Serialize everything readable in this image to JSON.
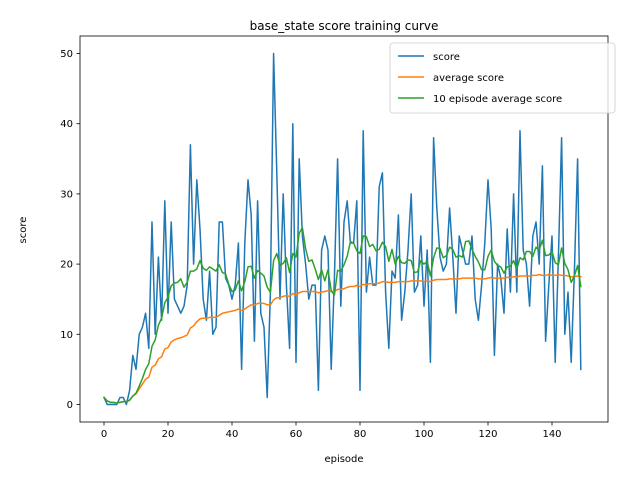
{
  "chart_data": {
    "type": "line",
    "title": "base_state score training curve",
    "xlabel": "episode",
    "ylabel": "score",
    "xlim": [
      -7.5,
      157.5
    ],
    "ylim": [
      -2.5,
      52.5
    ],
    "xticks": [
      0,
      20,
      40,
      60,
      80,
      100,
      120,
      140
    ],
    "yticks": [
      0,
      10,
      20,
      30,
      40,
      50
    ],
    "grid": false,
    "legend_position": "top-right",
    "series": [
      {
        "name": "score",
        "color": "#1f77b4",
        "values": [
          1,
          0,
          0,
          0,
          0,
          1,
          1,
          0,
          2,
          7,
          5,
          10,
          11,
          13,
          8,
          26,
          10,
          21,
          12,
          29,
          13,
          26,
          15,
          14,
          13,
          14,
          17,
          37,
          20,
          32,
          25,
          15,
          12,
          19,
          10,
          11,
          26,
          26,
          18,
          17,
          15,
          17,
          23,
          5,
          23,
          32,
          27,
          9,
          29,
          13,
          11,
          1,
          16,
          50,
          33,
          15,
          30,
          17,
          8,
          40,
          6,
          35,
          24,
          20,
          15,
          17,
          17,
          2,
          22,
          24,
          22,
          5,
          18,
          35,
          14,
          26,
          29,
          23,
          23,
          29,
          2,
          39,
          16,
          21,
          17,
          17,
          31,
          33,
          16,
          8,
          19,
          18,
          27,
          12,
          16,
          22,
          30,
          16,
          17,
          24,
          14,
          22,
          6,
          38,
          28,
          21,
          19,
          20,
          28,
          21,
          13,
          24,
          22,
          20,
          20,
          24,
          15,
          12,
          17,
          23,
          32,
          25,
          7,
          20,
          18,
          13,
          25,
          16,
          30,
          16,
          39,
          22,
          20,
          14,
          24,
          26,
          20,
          34,
          9,
          17,
          24,
          6,
          21,
          38,
          10,
          16,
          6,
          19,
          35,
          5
        ]
      },
      {
        "name": "average score",
        "color": "#ff7f0e",
        "values": [
          1.0,
          0.5,
          0.3,
          0.3,
          0.2,
          0.3,
          0.4,
          0.4,
          0.6,
          1.2,
          1.5,
          2.2,
          2.9,
          3.6,
          3.9,
          5.3,
          5.6,
          6.5,
          6.8,
          7.9,
          8.1,
          8.9,
          9.2,
          9.4,
          9.5,
          9.7,
          9.9,
          10.9,
          11.2,
          11.8,
          12.2,
          12.3,
          12.3,
          12.4,
          12.4,
          12.4,
          12.7,
          13.0,
          13.1,
          13.2,
          13.3,
          13.4,
          13.6,
          13.4,
          13.6,
          13.9,
          14.2,
          14.1,
          14.4,
          14.4,
          14.4,
          14.2,
          14.2,
          14.9,
          15.2,
          15.2,
          15.4,
          15.5,
          15.4,
          15.8,
          15.6,
          15.9,
          16.1,
          16.1,
          16.1,
          16.1,
          16.1,
          15.9,
          16.0,
          16.1,
          16.2,
          16.1,
          16.1,
          16.4,
          16.4,
          16.5,
          16.7,
          16.8,
          16.8,
          17.0,
          16.8,
          17.1,
          17.1,
          17.2,
          17.2,
          17.2,
          17.3,
          17.5,
          17.5,
          17.4,
          17.4,
          17.4,
          17.5,
          17.5,
          17.5,
          17.5,
          17.6,
          17.6,
          17.6,
          17.6,
          17.5,
          17.6,
          17.5,
          17.7,
          17.8,
          17.8,
          17.8,
          17.8,
          17.9,
          17.9,
          17.9,
          17.9,
          18.0,
          18.0,
          18.0,
          18.0,
          18.0,
          17.9,
          17.9,
          17.9,
          18.0,
          18.1,
          18.0,
          18.0,
          18.0,
          18.0,
          18.1,
          18.1,
          18.2,
          18.2,
          18.3,
          18.3,
          18.3,
          18.3,
          18.4,
          18.4,
          18.5,
          18.4,
          18.4,
          18.5,
          18.4,
          18.4,
          18.5,
          18.4,
          18.4,
          18.3,
          18.2,
          18.2,
          18.3,
          18.2
        ]
      },
      {
        "name": "10 episode average score",
        "color": "#2ca02c",
        "values": [
          1.0,
          0.5,
          0.3,
          0.3,
          0.2,
          0.3,
          0.4,
          0.4,
          0.6,
          1.2,
          1.6,
          2.6,
          3.7,
          5.0,
          5.8,
          8.3,
          9.2,
          11.3,
          12.3,
          14.5,
          15.3,
          16.9,
          17.3,
          17.4,
          17.9,
          16.7,
          17.4,
          19.0,
          19.0,
          19.3,
          20.5,
          19.4,
          19.1,
          19.6,
          19.3,
          19.0,
          19.9,
          18.8,
          18.6,
          17.1,
          16.1,
          16.3,
          17.6,
          16.2,
          17.5,
          19.6,
          19.7,
          18.0,
          19.1,
          18.7,
          18.3,
          16.7,
          16.0,
          20.5,
          21.5,
          19.8,
          20.1,
          20.9,
          18.8,
          21.5,
          21.0,
          24.4,
          25.2,
          22.2,
          20.4,
          20.6,
          19.3,
          17.8,
          19.2,
          17.6,
          19.2,
          16.2,
          15.6,
          19.1,
          19.0,
          19.9,
          21.1,
          23.2,
          23.0,
          21.9,
          21.5,
          24.0,
          23.9,
          22.5,
          22.8,
          21.9,
          22.1,
          23.1,
          22.5,
          20.4,
          22.1,
          20.0,
          21.1,
          20.2,
          20.1,
          20.6,
          20.5,
          18.8,
          18.9,
          20.5,
          20.0,
          20.4,
          18.3,
          20.9,
          22.3,
          22.2,
          20.9,
          21.2,
          22.4,
          22.1,
          21.0,
          21.2,
          21.0,
          23.2,
          23.3,
          22.1,
          21.1,
          20.3,
          19.2,
          19.2,
          21.1,
          22.0,
          20.4,
          19.8,
          19.6,
          18.7,
          19.6,
          19.7,
          20.5,
          19.3,
          20.9,
          20.6,
          21.8,
          21.8,
          21.1,
          22.4,
          22.0,
          23.4,
          21.2,
          21.3,
          21.8,
          20.2,
          19.9,
          22.3,
          20.1,
          19.2,
          17.4,
          18.3,
          19.8,
          16.8
        ]
      }
    ]
  }
}
